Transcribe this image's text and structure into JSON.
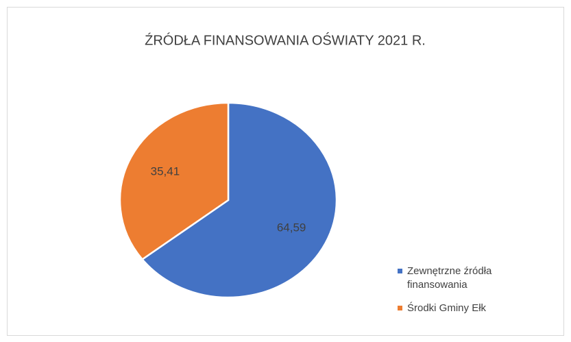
{
  "chart_data": {
    "type": "pie",
    "title": "ŹRÓDŁA FINANSOWANIA OŚWIATY 2021 R.",
    "categories": [
      "Zewnętrzne źródła finansowania",
      "Środki Gminy Ełk"
    ],
    "values": [
      64.59,
      35.41
    ],
    "value_labels": [
      "64,59",
      "35,41"
    ],
    "colors": [
      "#4472c4",
      "#ed7d31"
    ],
    "legend": "right"
  }
}
